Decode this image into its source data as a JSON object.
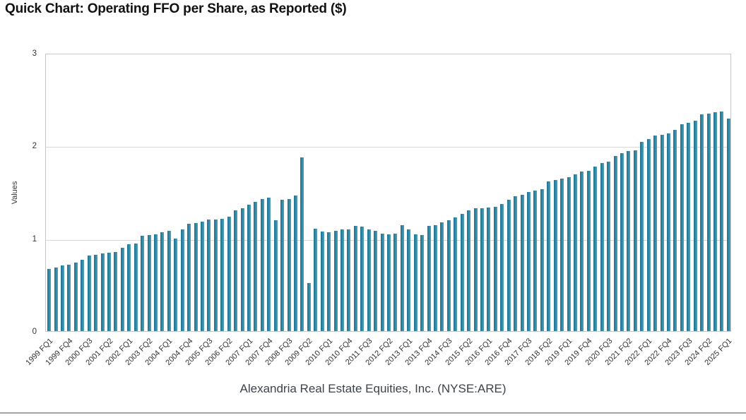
{
  "header": {
    "title": "Quick Chart: Operating FFO per Share, as Reported ($)"
  },
  "chart_data": {
    "type": "bar",
    "title": "Quick Chart: Operating FFO per Share, as Reported ($)",
    "subtitle": "Alexandria Real Estate Equities, Inc. (NYSE:ARE)",
    "xlabel": "",
    "ylabel": "Values",
    "ylim": [
      0,
      3
    ],
    "yticks": [
      0,
      1,
      2,
      3
    ],
    "grid": "horizontal",
    "legend": "none",
    "bar_color": "#2f87a4",
    "tick_label_every": 3,
    "x_tick_labels_shown": [
      "1999 FQ1",
      "1999 FQ4",
      "2000 FQ3",
      "2001 FQ2",
      "2002 FQ1",
      "2003 FQ2",
      "2004 FQ1",
      "2004 FQ4",
      "2005 FQ3",
      "2006 FQ2",
      "2007 FQ1",
      "2007 FQ4",
      "2008 FQ3",
      "2009 FQ2",
      "2010 FQ1",
      "2010 FQ4",
      "2011 FQ3",
      "2012 FQ2",
      "2013 FQ1",
      "2013 FQ4",
      "2014 FQ3",
      "2015 FQ2",
      "2016 FQ1",
      "2016 FQ4",
      "2017 FQ3",
      "2018 FQ2",
      "2019 FQ1",
      "2019 FQ4",
      "2020 FQ3",
      "2021 FQ2",
      "2022 FQ1",
      "2022 FQ4",
      "2023 FQ3",
      "2024 FQ2",
      "2025 FQ1"
    ],
    "categories": [
      "1999 FQ1",
      "1999 FQ2",
      "1999 FQ3",
      "1999 FQ4",
      "2000 FQ1",
      "2000 FQ2",
      "2000 FQ3",
      "2000 FQ4",
      "2001 FQ1",
      "2001 FQ2",
      "2001 FQ3",
      "2001 FQ4",
      "2002 FQ1",
      "2002 FQ4",
      "2003 FQ1",
      "2003 FQ2",
      "2003 FQ3",
      "2003 FQ4",
      "2004 FQ1",
      "2004 FQ2",
      "2004 FQ3",
      "2004 FQ4",
      "2005 FQ1",
      "2005 FQ2",
      "2005 FQ3",
      "2005 FQ4",
      "2006 FQ1",
      "2006 FQ2",
      "2006 FQ3",
      "2006 FQ4",
      "2007 FQ1",
      "2007 FQ2",
      "2007 FQ3",
      "2007 FQ4",
      "2008 FQ1",
      "2008 FQ2",
      "2008 FQ3",
      "2008 FQ4",
      "2009 FQ1",
      "2009 FQ2",
      "2009 FQ3",
      "2009 FQ4",
      "2010 FQ1",
      "2010 FQ2",
      "2010 FQ3",
      "2010 FQ4",
      "2011 FQ1",
      "2011 FQ2",
      "2011 FQ3",
      "2011 FQ4",
      "2012 FQ1",
      "2012 FQ2",
      "2012 FQ3",
      "2012 FQ4",
      "2013 FQ1",
      "2013 FQ2",
      "2013 FQ3",
      "2013 FQ4",
      "2014 FQ1",
      "2014 FQ2",
      "2014 FQ3",
      "2014 FQ4",
      "2015 FQ1",
      "2015 FQ2",
      "2015 FQ3",
      "2015 FQ4",
      "2016 FQ1",
      "2016 FQ2",
      "2016 FQ3",
      "2016 FQ4",
      "2017 FQ1",
      "2017 FQ2",
      "2017 FQ3",
      "2017 FQ4",
      "2018 FQ1",
      "2018 FQ2",
      "2018 FQ3",
      "2018 FQ4",
      "2019 FQ1",
      "2019 FQ2",
      "2019 FQ3",
      "2019 FQ4",
      "2020 FQ1",
      "2020 FQ2",
      "2020 FQ3",
      "2020 FQ4",
      "2021 FQ1",
      "2021 FQ2",
      "2021 FQ3",
      "2021 FQ4",
      "2022 FQ1",
      "2022 FQ2",
      "2022 FQ3",
      "2022 FQ4",
      "2023 FQ1",
      "2023 FQ2",
      "2023 FQ3",
      "2023 FQ4",
      "2024 FQ1",
      "2024 FQ2",
      "2024 FQ3",
      "2024 FQ4",
      "2025 FQ1"
    ],
    "values": [
      0.67,
      0.69,
      0.71,
      0.72,
      0.74,
      0.77,
      0.82,
      0.83,
      0.84,
      0.85,
      0.86,
      0.9,
      0.94,
      0.95,
      1.03,
      1.04,
      1.05,
      1.07,
      1.09,
      1.0,
      1.1,
      1.16,
      1.17,
      1.19,
      1.21,
      1.21,
      1.22,
      1.24,
      1.31,
      1.33,
      1.37,
      1.4,
      1.43,
      1.45,
      1.2,
      1.42,
      1.43,
      1.47,
      1.88,
      0.52,
      1.11,
      1.08,
      1.07,
      1.09,
      1.1,
      1.1,
      1.14,
      1.13,
      1.1,
      1.09,
      1.06,
      1.05,
      1.06,
      1.15,
      1.1,
      1.05,
      1.04,
      1.14,
      1.15,
      1.18,
      1.2,
      1.23,
      1.27,
      1.31,
      1.33,
      1.33,
      1.34,
      1.35,
      1.38,
      1.42,
      1.46,
      1.48,
      1.51,
      1.52,
      1.54,
      1.62,
      1.64,
      1.65,
      1.67,
      1.7,
      1.73,
      1.74,
      1.78,
      1.82,
      1.84,
      1.9,
      1.93,
      1.95,
      1.96,
      2.05,
      2.08,
      2.12,
      2.13,
      2.14,
      2.18,
      2.24,
      2.26,
      2.28,
      2.35,
      2.36,
      2.37,
      2.38,
      2.3
    ]
  }
}
